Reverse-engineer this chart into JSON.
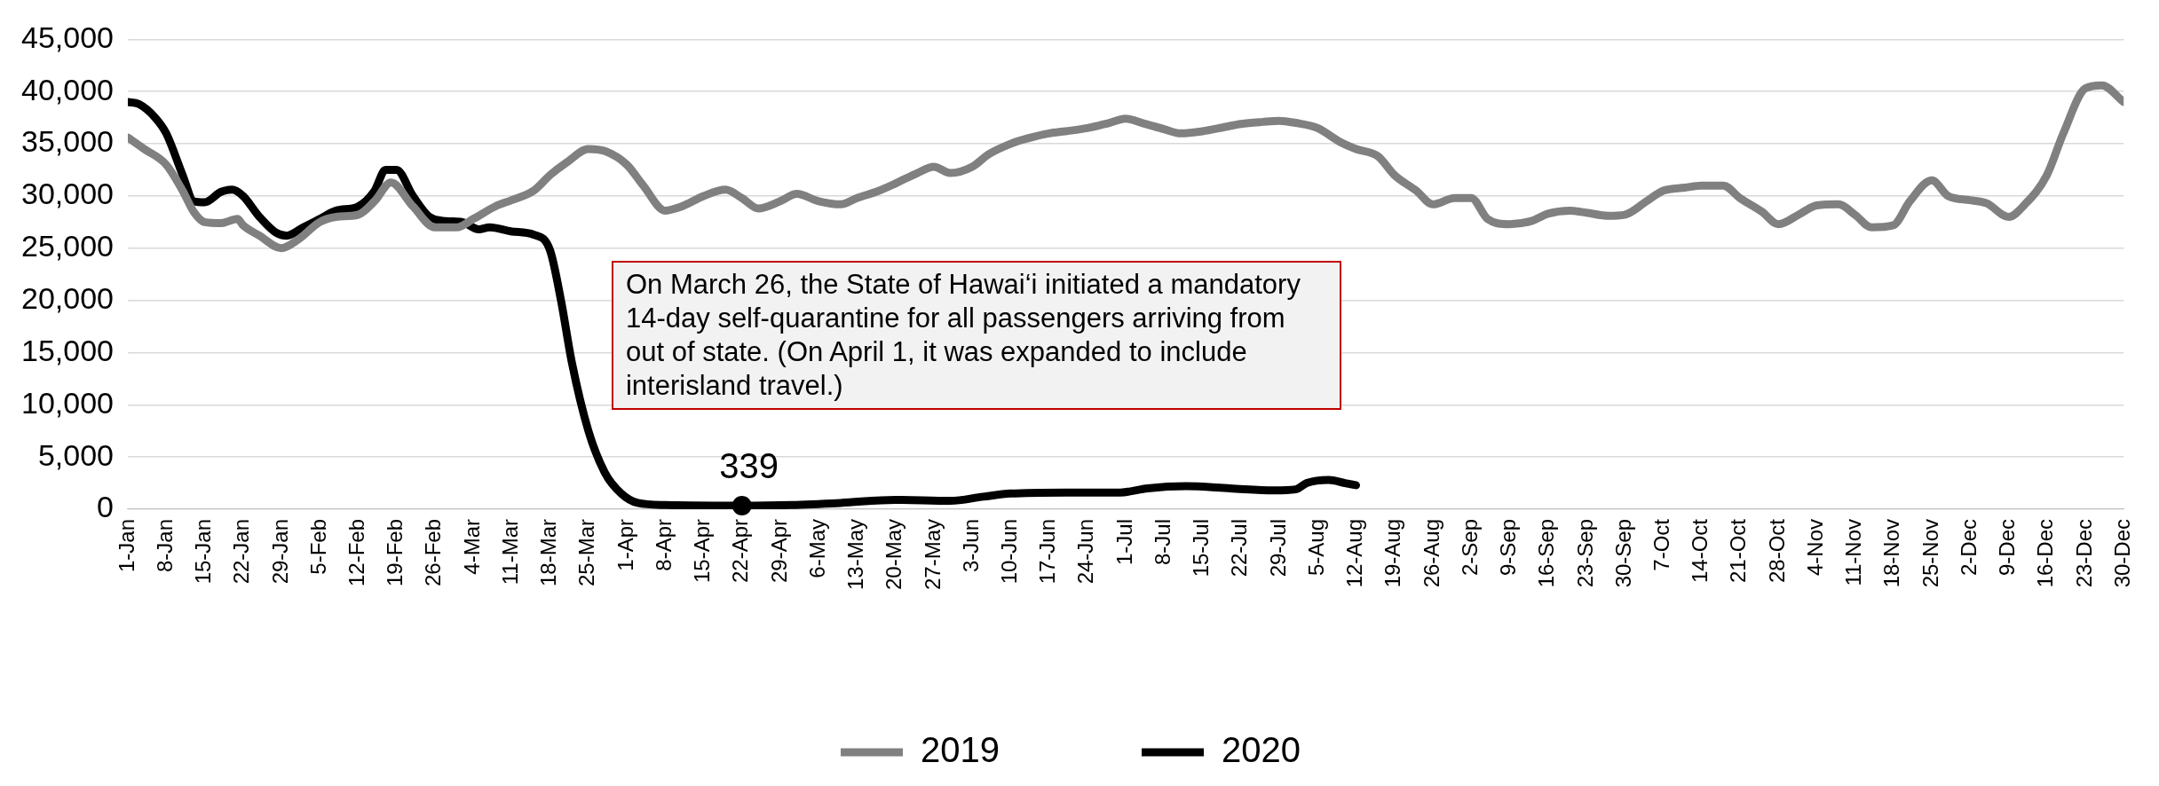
{
  "chart_data": {
    "type": "line",
    "ylim": [
      0,
      45000
    ],
    "yticks": [
      {
        "value": 0,
        "label": "0"
      },
      {
        "value": 5000,
        "label": "5,000"
      },
      {
        "value": 10000,
        "label": "10,000"
      },
      {
        "value": 15000,
        "label": "15,000"
      },
      {
        "value": 20000,
        "label": "20,000"
      },
      {
        "value": 25000,
        "label": "25,000"
      },
      {
        "value": 30000,
        "label": "30,000"
      },
      {
        "value": 35000,
        "label": "35,000"
      },
      {
        "value": 40000,
        "label": "40,000"
      },
      {
        "value": 45000,
        "label": "45,000"
      }
    ],
    "xlim": [
      "--01-01",
      "--12-30"
    ],
    "xticks": [
      {
        "value": "--01-01",
        "label": "1-Jan"
      },
      {
        "value": "--01-08",
        "label": "8-Jan"
      },
      {
        "value": "--01-15",
        "label": "15-Jan"
      },
      {
        "value": "--01-22",
        "label": "22-Jan"
      },
      {
        "value": "--01-29",
        "label": "29-Jan"
      },
      {
        "value": "--02-05",
        "label": "5-Feb"
      },
      {
        "value": "--02-12",
        "label": "12-Feb"
      },
      {
        "value": "--02-19",
        "label": "19-Feb"
      },
      {
        "value": "--02-26",
        "label": "26-Feb"
      },
      {
        "value": "--03-04",
        "label": "4-Mar"
      },
      {
        "value": "--03-11",
        "label": "11-Mar"
      },
      {
        "value": "--03-18",
        "label": "18-Mar"
      },
      {
        "value": "--03-25",
        "label": "25-Mar"
      },
      {
        "value": "--04-01",
        "label": "1-Apr"
      },
      {
        "value": "--04-08",
        "label": "8-Apr"
      },
      {
        "value": "--04-15",
        "label": "15-Apr"
      },
      {
        "value": "--04-22",
        "label": "22-Apr"
      },
      {
        "value": "--04-29",
        "label": "29-Apr"
      },
      {
        "value": "--05-06",
        "label": "6-May"
      },
      {
        "value": "--05-13",
        "label": "13-May"
      },
      {
        "value": "--05-20",
        "label": "20-May"
      },
      {
        "value": "--05-27",
        "label": "27-May"
      },
      {
        "value": "--06-03",
        "label": "3-Jun"
      },
      {
        "value": "--06-10",
        "label": "10-Jun"
      },
      {
        "value": "--06-17",
        "label": "17-Jun"
      },
      {
        "value": "--06-24",
        "label": "24-Jun"
      },
      {
        "value": "--07-01",
        "label": "1-Jul"
      },
      {
        "value": "--07-08",
        "label": "8-Jul"
      },
      {
        "value": "--07-15",
        "label": "15-Jul"
      },
      {
        "value": "--07-22",
        "label": "22-Jul"
      },
      {
        "value": "--07-29",
        "label": "29-Jul"
      },
      {
        "value": "--08-05",
        "label": "5-Aug"
      },
      {
        "value": "--08-12",
        "label": "12-Aug"
      },
      {
        "value": "--08-19",
        "label": "19-Aug"
      },
      {
        "value": "--08-26",
        "label": "26-Aug"
      },
      {
        "value": "--09-02",
        "label": "2-Sep"
      },
      {
        "value": "--09-09",
        "label": "9-Sep"
      },
      {
        "value": "--09-16",
        "label": "16-Sep"
      },
      {
        "value": "--09-23",
        "label": "23-Sep"
      },
      {
        "value": "--09-30",
        "label": "30-Sep"
      },
      {
        "value": "--10-07",
        "label": "7-Oct"
      },
      {
        "value": "--10-14",
        "label": "14-Oct"
      },
      {
        "value": "--10-21",
        "label": "21-Oct"
      },
      {
        "value": "--10-28",
        "label": "28-Oct"
      },
      {
        "value": "--11-04",
        "label": "4-Nov"
      },
      {
        "value": "--11-11",
        "label": "11-Nov"
      },
      {
        "value": "--11-18",
        "label": "18-Nov"
      },
      {
        "value": "--11-25",
        "label": "25-Nov"
      },
      {
        "value": "--12-02",
        "label": "2-Dec"
      },
      {
        "value": "--12-09",
        "label": "9-Dec"
      },
      {
        "value": "--12-16",
        "label": "16-Dec"
      },
      {
        "value": "--12-23",
        "label": "23-Dec"
      },
      {
        "value": "--12-30",
        "label": "30-Dec"
      }
    ],
    "grid": "y",
    "legend": "bottom",
    "marker": "none",
    "line_style": "solid",
    "series": [
      {
        "name": "2019",
        "color": "#808080",
        "x": [
          "--01-01",
          "--01-04",
          "--01-08",
          "--01-11",
          "--01-13",
          "--01-15",
          "--01-18",
          "--01-21",
          "--01-22",
          "--01-25",
          "--01-29",
          "--02-01",
          "--02-05",
          "--02-08",
          "--02-12",
          "--02-15",
          "--02-18",
          "--02-22",
          "--02-26",
          "--03-01",
          "--03-04",
          "--03-08",
          "--03-11",
          "--03-15",
          "--03-18",
          "--03-21",
          "--03-25",
          "--03-28",
          "--04-01",
          "--04-04",
          "--04-08",
          "--04-11",
          "--04-15",
          "--04-19",
          "--04-22",
          "--04-25",
          "--04-29",
          "--05-02",
          "--05-06",
          "--05-10",
          "--05-13",
          "--05-17",
          "--05-20",
          "--05-24",
          "--05-27",
          "--05-30",
          "--06-03",
          "--06-06",
          "--06-10",
          "--06-13",
          "--06-17",
          "--06-20",
          "--06-24",
          "--06-28",
          "--07-01",
          "--07-04",
          "--07-08",
          "--07-11",
          "--07-15",
          "--07-19",
          "--07-22",
          "--07-26",
          "--07-29",
          "--08-01",
          "--08-05",
          "--08-09",
          "--08-12",
          "--08-16",
          "--08-19",
          "--08-23",
          "--08-26",
          "--08-30",
          "--09-02",
          "--09-05",
          "--09-09",
          "--09-13",
          "--09-16",
          "--09-20",
          "--09-23",
          "--09-27",
          "--09-30",
          "--10-04",
          "--10-07",
          "--10-11",
          "--10-14",
          "--10-18",
          "--10-21",
          "--10-25",
          "--10-28",
          "--11-01",
          "--11-04",
          "--11-08",
          "--11-11",
          "--11-14",
          "--11-18",
          "--11-21",
          "--11-25",
          "--11-28",
          "--12-02",
          "--12-05",
          "--12-09",
          "--12-12",
          "--12-16",
          "--12-19",
          "--12-23",
          "--12-26",
          "--12-30"
        ],
        "values": [
          35600,
          34500,
          33000,
          30500,
          28500,
          27500,
          27400,
          27800,
          27200,
          26200,
          25000,
          25800,
          27500,
          28000,
          28200,
          29500,
          31300,
          29000,
          27000,
          27000,
          27800,
          29000,
          29600,
          30500,
          32000,
          33200,
          34500,
          34300,
          33000,
          31000,
          28600,
          29000,
          30000,
          30600,
          29800,
          28800,
          29500,
          30200,
          29500,
          29200,
          29800,
          30500,
          31200,
          32200,
          32800,
          32200,
          32800,
          34000,
          35000,
          35500,
          36000,
          36200,
          36500,
          37000,
          37400,
          37000,
          36400,
          36000,
          36200,
          36600,
          36900,
          37100,
          37200,
          37000,
          36500,
          35200,
          34500,
          33800,
          32000,
          30500,
          29200,
          29800,
          29800,
          27800,
          27300,
          27600,
          28300,
          28600,
          28400,
          28100,
          28200,
          29500,
          30500,
          30800,
          31000,
          31000,
          29800,
          28500,
          27300,
          28300,
          29100,
          29200,
          28200,
          27000,
          27200,
          29500,
          31500,
          30000,
          29600,
          29300,
          28000,
          29200,
          32000,
          36000,
          40300,
          40600,
          39000
        ]
      },
      {
        "name": "2020",
        "color": "#000000",
        "x": [
          "--01-01",
          "--01-03",
          "--01-06",
          "--01-08",
          "--01-11",
          "--01-13",
          "--01-15",
          "--01-18",
          "--01-20",
          "--01-22",
          "--01-25",
          "--01-28",
          "--01-30",
          "--02-02",
          "--02-05",
          "--02-08",
          "--02-12",
          "--02-15",
          "--02-17",
          "--02-19",
          "--02-22",
          "--02-25",
          "--02-28",
          "--03-02",
          "--03-05",
          "--03-07",
          "--03-11",
          "--03-15",
          "--03-18",
          "--03-20",
          "--03-22",
          "--03-25",
          "--03-28",
          "--03-31",
          "--04-03",
          "--04-08",
          "--04-22",
          "--05-01",
          "--05-10",
          "--05-20",
          "--05-30",
          "--06-05",
          "--06-10",
          "--06-20",
          "--06-30",
          "--07-05",
          "--07-12",
          "--07-20",
          "--07-28",
          "--08-01",
          "--08-03",
          "--08-07",
          "--08-10",
          "--08-12"
        ],
        "values": [
          39000,
          38800,
          37500,
          36000,
          32000,
          29500,
          29400,
          30400,
          30600,
          30000,
          28000,
          26500,
          26200,
          27000,
          27800,
          28600,
          29000,
          30500,
          32500,
          32500,
          30000,
          28000,
          27600,
          27500,
          26800,
          27000,
          26600,
          26300,
          24800,
          20000,
          14000,
          7500,
          3500,
          1500,
          600,
          400,
          339,
          400,
          600,
          900,
          800,
          1200,
          1500,
          1600,
          1600,
          2000,
          2200,
          2000,
          1800,
          1900,
          2500,
          2800,
          2500,
          2300
        ]
      }
    ],
    "annotations": [
      {
        "text": "339",
        "x": "--04-22",
        "y": 339
      },
      "On March 26, the State of Hawai‘i initiated a mandatory 14-day self-quarantine for all passengers arriving from out of state. (On April 1, it was expanded to include interisland travel.)"
    ]
  }
}
